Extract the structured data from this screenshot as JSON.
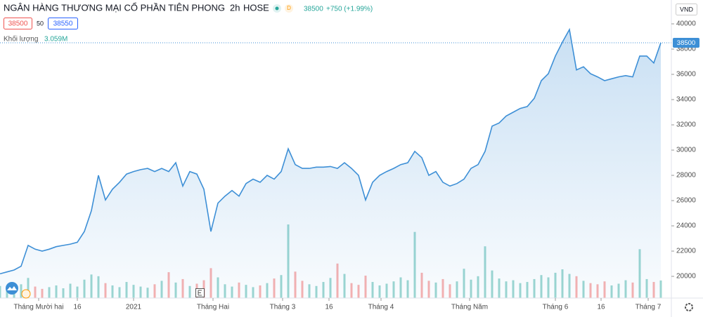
{
  "header": {
    "title": "NGÂN HÀNG THƯƠNG MẠI CỔ PHẦN TIÊN PHONG",
    "interval": "2h",
    "exchange": "HOSE",
    "badge": "D",
    "change": "+750 (+1.99%)",
    "bid": 38500,
    "spread": 50,
    "ask": 38550,
    "volume_label": "Khối lượng",
    "volume_value": "3.059M",
    "currency": "VND"
  },
  "chart_data": {
    "type": "area",
    "color": "#3d8fd6",
    "grid": false,
    "x": [
      0,
      1,
      2,
      3,
      4,
      5,
      6,
      7,
      8,
      9,
      10,
      11,
      12,
      13,
      14,
      15,
      16,
      17,
      18,
      19,
      20,
      21,
      22,
      23,
      24,
      25,
      26,
      27,
      28,
      29,
      30,
      31,
      32,
      33,
      34,
      35,
      36,
      37,
      38,
      39,
      40,
      41,
      42,
      43,
      44,
      45,
      46,
      47,
      48,
      49,
      50,
      51,
      52,
      53,
      54,
      55,
      56,
      57,
      58,
      59,
      60,
      61,
      62,
      63,
      64,
      65,
      66,
      67,
      68,
      69,
      70,
      71,
      72,
      73,
      74,
      75,
      76,
      77,
      78,
      79,
      80,
      81,
      82,
      83,
      84,
      85,
      86,
      87,
      88,
      89,
      90,
      91,
      92,
      93,
      94
    ],
    "series": [
      {
        "values": [
          20200,
          20350,
          20500,
          20800,
          22450,
          22150,
          22000,
          22150,
          22350,
          22450,
          22550,
          22700,
          23550,
          25200,
          28000,
          26050,
          26900,
          27450,
          28100,
          28300,
          28450,
          28550,
          28300,
          28550,
          28300,
          29000,
          27150,
          28300,
          28100,
          26900,
          23550,
          25800,
          26350,
          26800,
          26350,
          27350,
          27700,
          27450,
          28000,
          27700,
          28300,
          30100,
          28850,
          28550,
          28550,
          28650,
          28650,
          28700,
          28550,
          29000,
          28550,
          28000,
          26050,
          27450,
          28000,
          28300,
          28550,
          28850,
          29000,
          29900,
          29400,
          28000,
          28300,
          27450,
          27150,
          27350,
          27700,
          28550,
          28850,
          29900,
          31900,
          32150,
          32700,
          33000,
          33300,
          33450,
          34100,
          35500,
          36050,
          37450,
          38550,
          39550,
          36350,
          36600,
          36050,
          35800,
          35500,
          35650,
          35800,
          35900,
          35800,
          37450,
          37450,
          36900,
          38500
        ]
      }
    ],
    "volume": {
      "up_color": "#26a69a",
      "down_color": "#ef5350",
      "ylim": [
        0,
        50
      ],
      "values": [
        2.1,
        1.5,
        1.8,
        2.4,
        3.5,
        2.0,
        1.6,
        1.9,
        2.2,
        1.7,
        2.5,
        2.0,
        3.2,
        4.1,
        3.8,
        2.6,
        2.2,
        1.9,
        2.8,
        2.3,
        2.0,
        1.8,
        2.4,
        3.0,
        4.5,
        2.7,
        3.3,
        2.1,
        2.5,
        3.1,
        5.2,
        3.6,
        2.4,
        2.0,
        2.7,
        2.3,
        1.9,
        2.2,
        2.6,
        3.4,
        4.0,
        12.8,
        4.6,
        3.0,
        2.4,
        2.1,
        2.8,
        3.5,
        6.0,
        4.2,
        2.6,
        2.3,
        3.9,
        2.8,
        2.2,
        2.5,
        2.9,
        3.6,
        3.1,
        11.5,
        4.4,
        3.0,
        2.7,
        3.3,
        2.4,
        2.9,
        5.1,
        3.2,
        3.8,
        9.0,
        4.8,
        3.4,
        2.9,
        3.1,
        2.6,
        2.8,
        3.3,
        4.0,
        3.6,
        4.4,
        5.0,
        4.2,
        3.8,
        3.0,
        2.6,
        2.4,
        2.9,
        2.2,
        2.5,
        3.1,
        2.7,
        8.5,
        3.3,
        2.8,
        3.059
      ]
    },
    "xlim": [
      0,
      95.5
    ],
    "xticks": [
      {
        "value": 5.5,
        "label": "Tháng Mười hai"
      },
      {
        "value": 11,
        "label": "16"
      },
      {
        "value": 19,
        "label": "2021"
      },
      {
        "value": 30.3,
        "label": "Tháng Hai"
      },
      {
        "value": 40.2,
        "label": "Tháng 3"
      },
      {
        "value": 46.8,
        "label": "16"
      },
      {
        "value": 54.2,
        "label": "Tháng 4"
      },
      {
        "value": 66.8,
        "label": "Tháng Năm"
      },
      {
        "value": 79,
        "label": "Tháng 6"
      },
      {
        "value": 85.5,
        "label": "16"
      },
      {
        "value": 92.2,
        "label": "Tháng 7"
      }
    ],
    "ylim": [
      18280,
      41890
    ],
    "yticks": [
      20000,
      22000,
      24000,
      26000,
      28000,
      30000,
      32000,
      34000,
      36000,
      38000,
      40000
    ]
  }
}
